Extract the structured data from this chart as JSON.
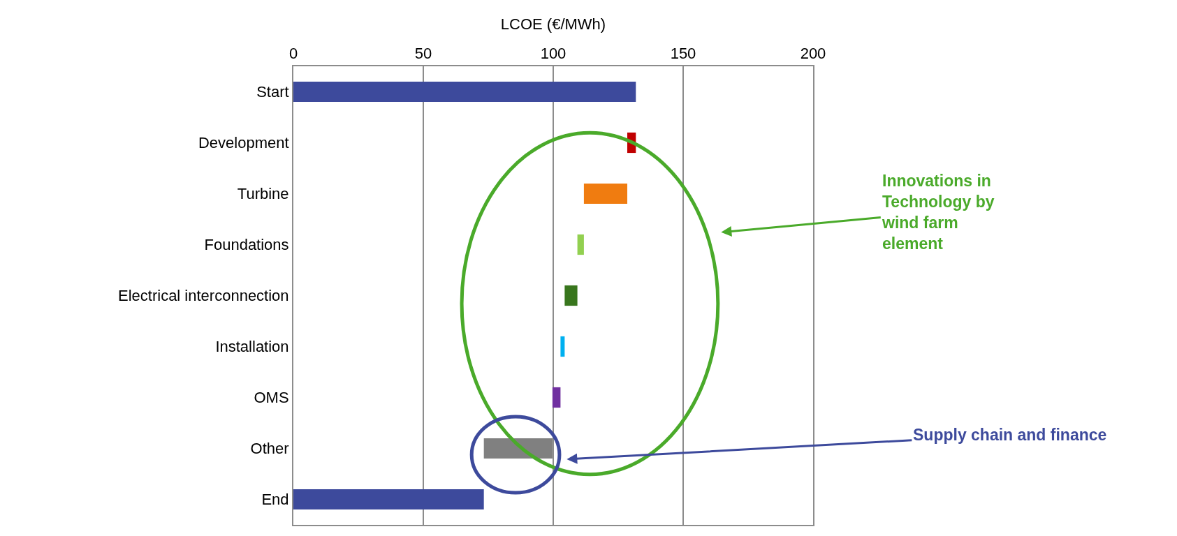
{
  "chart_data": {
    "type": "bar",
    "orientation": "horizontal",
    "xlabel": "LCOE (€/MWh)",
    "categories": [
      "Start",
      "Development",
      "Turbine",
      "Foundations",
      "Electrical interconnection",
      "Installation",
      "OMS",
      "Other",
      "End"
    ],
    "values": [
      131.8,
      3.3,
      16.7,
      2.5,
      4.9,
      1.6,
      3.1,
      26.4,
      73.3
    ],
    "base": [
      0,
      128.5,
      111.8,
      109.3,
      104.4,
      102.8,
      99.7,
      73.3,
      0
    ],
    "colors": [
      "#3d4a9c",
      "#c00000",
      "#f07c10",
      "#92d050",
      "#38761d",
      "#00b0f0",
      "#7030a0",
      "#808080",
      "#3d4a9c"
    ],
    "xlim": [
      0,
      200
    ],
    "xticks": [
      0,
      50,
      100,
      150,
      200
    ],
    "grid": "x",
    "legend": false,
    "annotations": [
      "Innovations in\nTechnology by\nwind farm\nelement",
      "Supply chain and finance"
    ]
  }
}
